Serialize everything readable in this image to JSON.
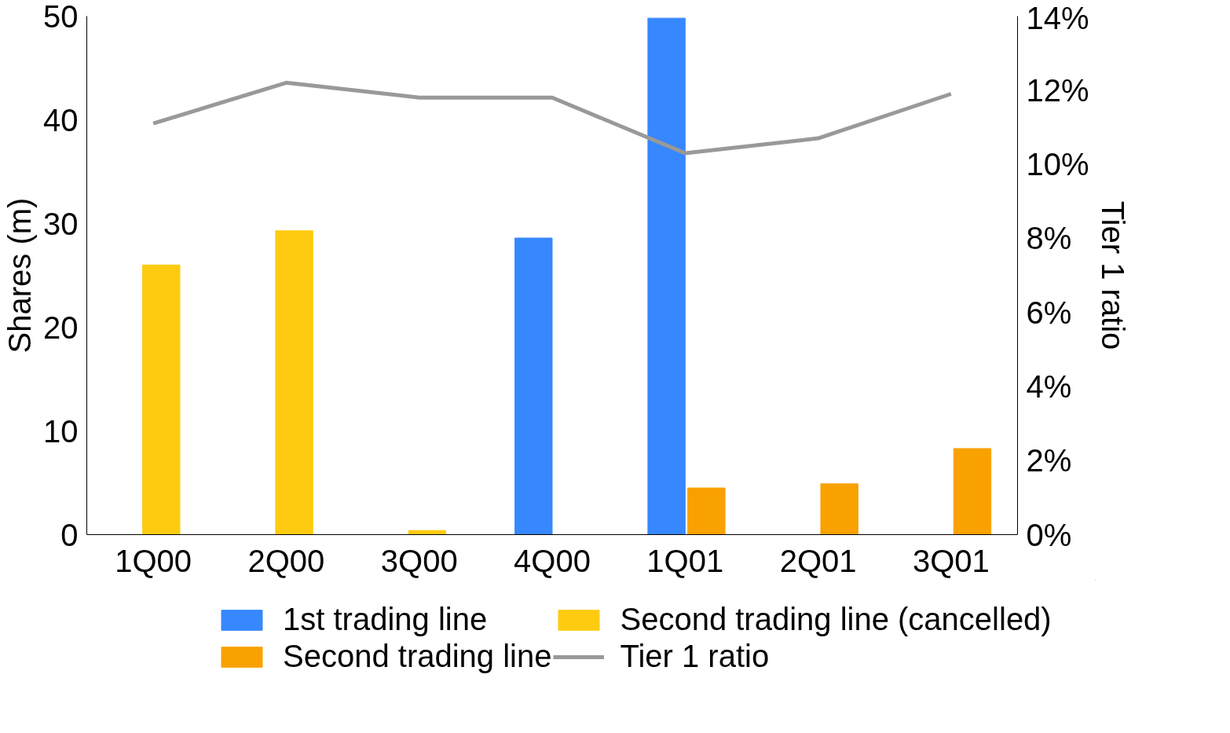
{
  "chart_data": {
    "type": "bar",
    "ylabel": "Shares (m)",
    "y2label": "Tier 1 ratio",
    "categories": [
      "1Q00",
      "2Q00",
      "3Q00",
      "4Q00",
      "1Q01",
      "2Q01",
      "3Q01"
    ],
    "series": [
      {
        "name": "1st trading line",
        "color": "#3787fe",
        "values": [
          null,
          null,
          null,
          28.6,
          49.8,
          null,
          null
        ]
      },
      {
        "name": "Second trading line (cancelled)",
        "color": "#fecb11",
        "values": [
          26.0,
          29.3,
          0.4,
          null,
          null,
          null,
          null
        ]
      },
      {
        "name": "Second trading line",
        "color": "#f9a100",
        "values": [
          null,
          null,
          null,
          null,
          4.5,
          4.9,
          8.3
        ]
      },
      {
        "name": "Tier 1 ratio",
        "type": "line",
        "axis": "y2",
        "color": "#999999",
        "values": [
          11.1,
          12.2,
          11.8,
          11.8,
          10.3,
          10.7,
          11.9
        ]
      }
    ],
    "ylim": [
      0,
      50
    ],
    "yticks": [
      0,
      10,
      20,
      30,
      40,
      50
    ],
    "y2lim": [
      0,
      14
    ],
    "y2ticks": [
      {
        "value": 0,
        "label": "0%"
      },
      {
        "value": 2,
        "label": "2%"
      },
      {
        "value": 4,
        "label": "4%"
      },
      {
        "value": 6,
        "label": "6%"
      },
      {
        "value": 8,
        "label": "8%"
      },
      {
        "value": 10,
        "label": "10%"
      },
      {
        "value": 12,
        "label": "12%"
      },
      {
        "value": 14,
        "label": "14%"
      }
    ],
    "legend": "bottom",
    "grid": false
  }
}
